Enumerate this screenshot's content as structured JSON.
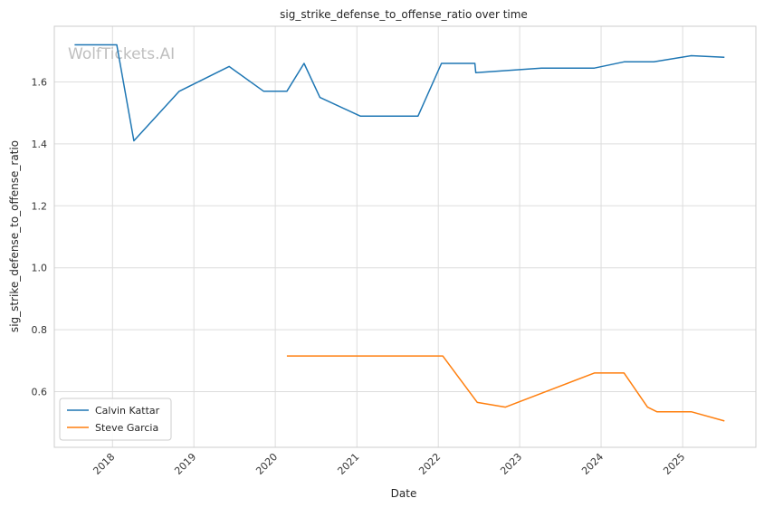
{
  "watermark": "WolfTickets.AI",
  "chart_data": {
    "type": "line",
    "title": "sig_strike_defense_to_offense_ratio over time",
    "xlabel": "Date",
    "ylabel": "sig_strike_defense_to_offense_ratio",
    "x_ticks": [
      "2018",
      "2019",
      "2020",
      "2021",
      "2022",
      "2023",
      "2024",
      "2025"
    ],
    "y_ticks": [
      "0.6",
      "0.8",
      "1.0",
      "1.2",
      "1.4",
      "1.6"
    ],
    "xlim": [
      "2017-04-15",
      "2025-11-25"
    ],
    "ylim": [
      0.42,
      1.78
    ],
    "grid": true,
    "legend_position": "lower-left",
    "series": [
      {
        "name": "Calvin Kattar",
        "color": "#1f77b4",
        "points": [
          [
            "2017-07-15",
            1.72
          ],
          [
            "2018-01-20",
            1.72
          ],
          [
            "2018-04-07",
            1.41
          ],
          [
            "2018-10-27",
            1.57
          ],
          [
            "2019-06-08",
            1.65
          ],
          [
            "2019-11-10",
            1.57
          ],
          [
            "2020-02-22",
            1.57
          ],
          [
            "2020-05-09",
            1.66
          ],
          [
            "2020-07-19",
            1.55
          ],
          [
            "2021-01-16",
            1.49
          ],
          [
            "2021-10-02",
            1.49
          ],
          [
            "2022-01-15",
            1.66
          ],
          [
            "2022-06-14",
            1.66
          ],
          [
            "2022-06-18",
            1.63
          ],
          [
            "2023-04-08",
            1.645
          ],
          [
            "2023-12-02",
            1.645
          ],
          [
            "2024-04-13",
            1.665
          ],
          [
            "2024-08-24",
            1.665
          ],
          [
            "2025-02-08",
            1.685
          ],
          [
            "2025-07-07",
            1.68
          ]
        ]
      },
      {
        "name": "Steve Garcia",
        "color": "#ff7f0e",
        "points": [
          [
            "2020-02-22",
            0.715
          ],
          [
            "2022-01-21",
            0.715
          ],
          [
            "2022-06-25",
            0.565
          ],
          [
            "2022-10-29",
            0.55
          ],
          [
            "2023-12-02",
            0.66
          ],
          [
            "2024-04-13",
            0.66
          ],
          [
            "2024-07-27",
            0.55
          ],
          [
            "2024-09-07",
            0.535
          ],
          [
            "2025-02-08",
            0.535
          ],
          [
            "2025-07-07",
            0.505
          ]
        ]
      }
    ]
  }
}
